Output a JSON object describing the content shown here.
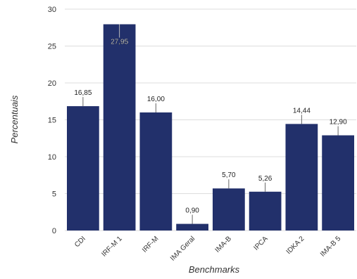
{
  "chart_data": {
    "type": "bar",
    "categories": [
      "CDI",
      "IRF-M 1",
      "IRF-M",
      "IMA Geral",
      "IMA-B",
      "IPCA",
      "IDKA 2",
      "IMA-B 5"
    ],
    "values": [
      16.85,
      27.95,
      16.0,
      0.9,
      5.7,
      5.26,
      14.44,
      12.9
    ],
    "value_labels": [
      "16,85",
      "27,95",
      "16,00",
      "0,90",
      "5,70",
      "5,26",
      "14,44",
      "12,90"
    ],
    "y_ticks": [
      0,
      5,
      10,
      15,
      20,
      25,
      30
    ],
    "y_tick_labels": [
      "0",
      "5",
      "10",
      "15",
      "20",
      "25",
      "30"
    ],
    "xlabel": "Benchmarks",
    "ylabel": "Percentuais",
    "ylim": [
      0,
      30
    ],
    "grid": true,
    "legend": "none",
    "bar_color": "#22306b",
    "grid_color": "#dddddd"
  }
}
